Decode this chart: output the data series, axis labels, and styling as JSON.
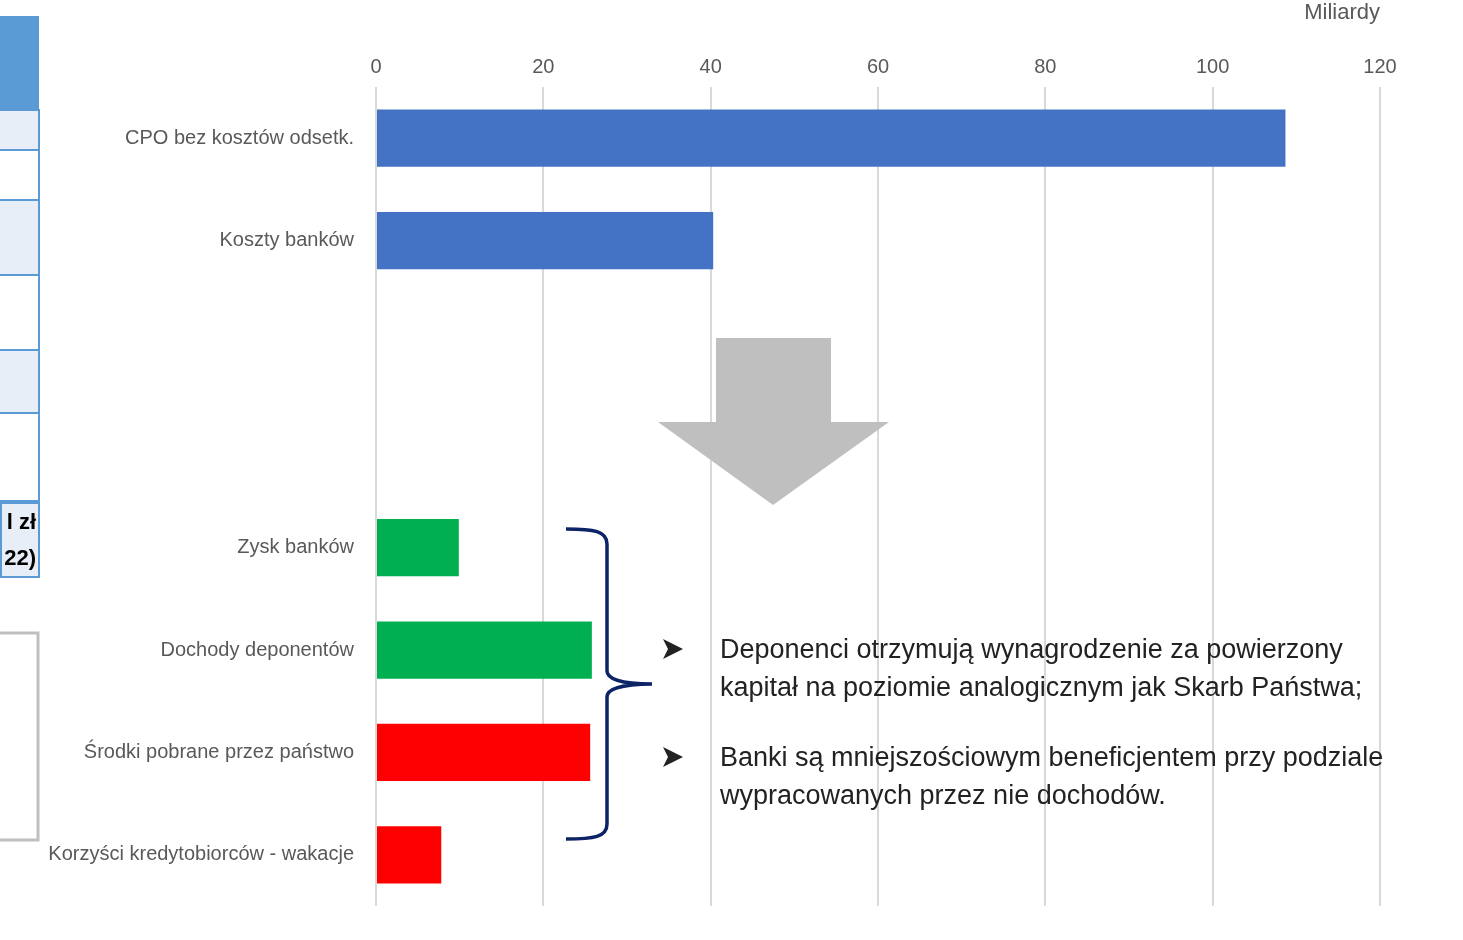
{
  "chart_data": {
    "type": "bar",
    "orientation": "horizontal",
    "xlabel": "Miliardy",
    "categories": [
      "CPO bez kosztów odsetk.",
      "Koszty banków",
      null,
      null,
      "Zysk banków",
      "Dochody deponentów",
      "Środki pobrane przez państwo",
      "Korzyści kredytobiorców - wakacje"
    ],
    "values": [
      108.7,
      40.3,
      null,
      null,
      9.9,
      25.8,
      25.6,
      7.8
    ],
    "colors": [
      "#4472c4",
      "#4472c4",
      null,
      null,
      "#00b050",
      "#00b050",
      "#ff0000",
      "#ff0000"
    ],
    "xlim": [
      0,
      120
    ],
    "xticks": [
      0,
      20,
      40,
      60,
      80,
      100,
      120
    ],
    "grid": "x",
    "legend": false,
    "annotations": [
      "Deponenci otrzymują wynagrodzenie za powierzony kapitał na poziomie analogicznym jak Skarb Państwa;",
      "Banki są mniejszościowym beneficjentem przy podziale wypracowanych przez nie dochodów.",
      "l zł",
      "22)"
    ]
  }
}
